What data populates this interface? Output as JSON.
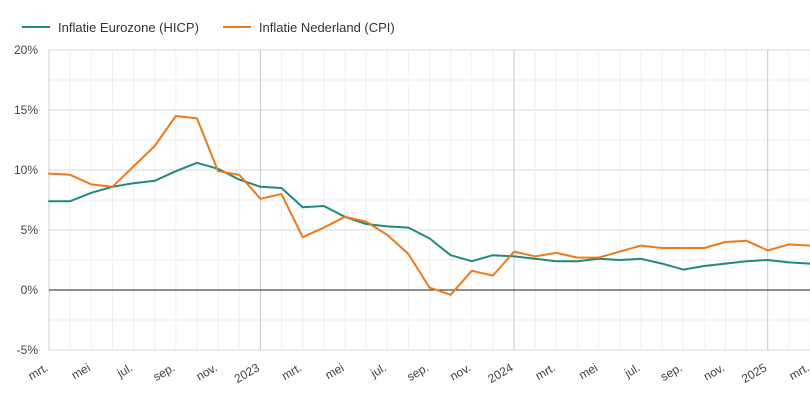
{
  "legend": [
    {
      "label": "Inflatie Eurozone (HICP)",
      "color": "#1f8a7d"
    },
    {
      "label": "Inflatie Nederland (CPI)",
      "color": "#ef7a1a"
    }
  ],
  "chart_data": {
    "type": "line",
    "title": "",
    "xlabel": "",
    "ylabel": "",
    "ylim": [
      -5,
      20
    ],
    "yticks": [
      "-5%",
      "0%",
      "5%",
      "10%",
      "15%",
      "20%"
    ],
    "ytick_values": [
      -5,
      0,
      5,
      10,
      15,
      20
    ],
    "x_range": [
      "2022-03",
      "2025-03"
    ],
    "xticks": [
      "mrt.",
      "mei",
      "jul.",
      "sep.",
      "nov.",
      "2023",
      "mrt.",
      "mei",
      "jul.",
      "sep.",
      "nov.",
      "2024",
      "mrt.",
      "mei",
      "jul.",
      "sep.",
      "nov.",
      "2025",
      "mrt."
    ],
    "xtick_months": [
      "2022-03",
      "2022-05",
      "2022-07",
      "2022-09",
      "2022-11",
      "2023-01",
      "2023-03",
      "2023-05",
      "2023-07",
      "2023-09",
      "2023-11",
      "2024-01",
      "2024-03",
      "2024-05",
      "2024-07",
      "2024-09",
      "2024-11",
      "2025-01",
      "2025-03"
    ],
    "year_lines": [
      "2023-01",
      "2024-01",
      "2025-01"
    ],
    "zero_line": true,
    "grid": true,
    "legend_position": "top-left",
    "x": [
      "2022-03",
      "2022-04",
      "2022-05",
      "2022-06",
      "2022-07",
      "2022-08",
      "2022-09",
      "2022-10",
      "2022-11",
      "2022-12",
      "2023-01",
      "2023-02",
      "2023-03",
      "2023-04",
      "2023-05",
      "2023-06",
      "2023-07",
      "2023-08",
      "2023-09",
      "2023-10",
      "2023-11",
      "2023-12",
      "2024-01",
      "2024-02",
      "2024-03",
      "2024-04",
      "2024-05",
      "2024-06",
      "2024-07",
      "2024-08",
      "2024-09",
      "2024-10",
      "2024-11",
      "2024-12",
      "2025-01",
      "2025-02",
      "2025-03"
    ],
    "series": [
      {
        "name": "Inflatie Eurozone (HICP)",
        "color": "#1f8a7d",
        "values": [
          7.4,
          7.4,
          8.1,
          8.6,
          8.9,
          9.1,
          9.9,
          10.6,
          10.1,
          9.2,
          8.6,
          8.5,
          6.9,
          7.0,
          6.1,
          5.5,
          5.3,
          5.2,
          4.3,
          2.9,
          2.4,
          2.9,
          2.8,
          2.6,
          2.4,
          2.4,
          2.6,
          2.5,
          2.6,
          2.2,
          1.7,
          2.0,
          2.2,
          2.4,
          2.5,
          2.3,
          2.2
        ]
      },
      {
        "name": "Inflatie Nederland (CPI)",
        "color": "#ef7a1a",
        "values": [
          9.7,
          9.6,
          8.8,
          8.6,
          10.3,
          12.0,
          14.5,
          14.3,
          9.9,
          9.6,
          7.6,
          8.0,
          4.4,
          5.2,
          6.1,
          5.7,
          4.6,
          3.0,
          0.2,
          -0.4,
          1.6,
          1.2,
          3.2,
          2.8,
          3.1,
          2.7,
          2.7,
          3.2,
          3.7,
          3.5,
          3.5,
          3.5,
          4.0,
          4.1,
          3.3,
          3.8,
          3.7
        ]
      }
    ]
  }
}
